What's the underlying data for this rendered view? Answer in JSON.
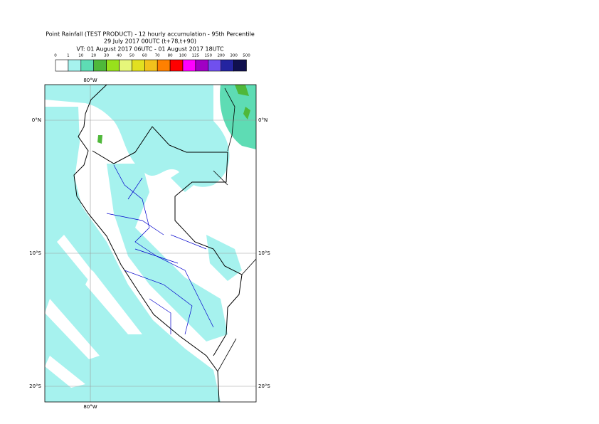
{
  "header": {
    "title": [
      "Point Rainfall (TEST PRODUCT) - 12 hourly accumulation - 95th Percentile",
      "29 July 2017 00UTC (t+78,t+90)",
      "VT: 01 August 2017 06UTC - 01 August 2017 18UTC"
    ]
  },
  "legend": {
    "thresholds": [
      "0",
      "1",
      "10",
      "20",
      "30",
      "40",
      "50",
      "60",
      "70",
      "80",
      "100",
      "125",
      "150",
      "200",
      "300",
      "500"
    ],
    "colors": [
      "#ffffff",
      "#a6f2ee",
      "#5edcb4",
      "#4fb83a",
      "#98e01c",
      "#e6f67a",
      "#e2e020",
      "#f2c21c",
      "#ff8000",
      "#ff0000",
      "#ff00ff",
      "#a000c4",
      "#7050ee",
      "#2424a0",
      "#10104e"
    ]
  },
  "map": {
    "lon_labels": [
      "80°W"
    ],
    "lat_labels": [
      "0°N",
      "10°S",
      "20°S"
    ]
  }
}
